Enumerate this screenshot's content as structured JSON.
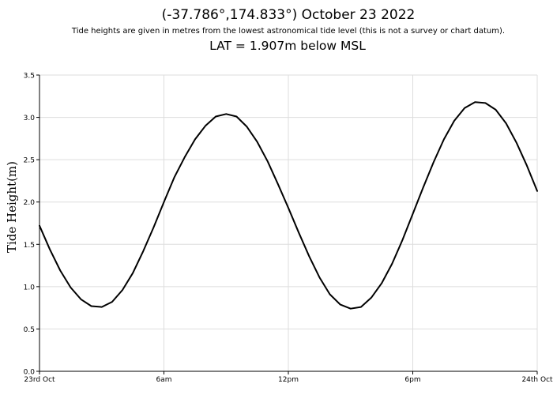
{
  "header": {
    "title": "(-37.786°,174.833°) October 23 2022",
    "subtitle": "Tide heights are given in metres from the lowest astronomical tide level (this is not a survey or chart datum).",
    "lat_note": "LAT = 1.907m below MSL"
  },
  "chart_data": {
    "type": "line",
    "title": "(-37.786°,174.833°) October 23 2022",
    "xlabel": "",
    "ylabel": "Tide Height(m)",
    "xlim": [
      0,
      24
    ],
    "ylim": [
      0,
      3.5
    ],
    "grid": true,
    "legend": "none",
    "x_tick_values": [
      0,
      6,
      12,
      18,
      24
    ],
    "x_tick_labels": [
      "23rd Oct",
      "6am",
      "12pm",
      "6pm",
      "24th Oct"
    ],
    "y_tick_values": [
      0,
      0.5,
      1,
      1.5,
      2,
      2.5,
      3,
      3.5
    ],
    "y_tick_labels": [
      "0.0",
      "0.5",
      "1.0",
      "1.5",
      "2.0",
      "2.5",
      "3.0",
      "3.5"
    ],
    "series": [
      {
        "color": "#000000",
        "x": [
          0,
          0.5,
          1,
          1.5,
          2,
          2.5,
          3,
          3.5,
          4,
          4.5,
          5,
          5.5,
          6,
          6.5,
          7,
          7.5,
          8,
          8.5,
          9,
          9.5,
          10,
          10.5,
          11,
          11.5,
          12,
          12.5,
          13,
          13.5,
          14,
          14.5,
          15,
          15.5,
          16,
          16.5,
          17,
          17.5,
          18,
          18.5,
          19,
          19.5,
          20,
          20.5,
          21,
          21.5,
          22,
          22.5,
          23,
          23.5,
          24
        ],
        "y": [
          1.72,
          1.44,
          1.19,
          0.99,
          0.85,
          0.77,
          0.76,
          0.82,
          0.96,
          1.16,
          1.42,
          1.7,
          2.0,
          2.29,
          2.53,
          2.74,
          2.9,
          3.01,
          3.04,
          3.01,
          2.89,
          2.71,
          2.48,
          2.21,
          1.93,
          1.64,
          1.36,
          1.11,
          0.91,
          0.79,
          0.74,
          0.76,
          0.87,
          1.04,
          1.27,
          1.55,
          1.86,
          2.17,
          2.47,
          2.74,
          2.96,
          3.11,
          3.18,
          3.17,
          3.09,
          2.93,
          2.7,
          2.43,
          2.13
        ]
      }
    ]
  }
}
